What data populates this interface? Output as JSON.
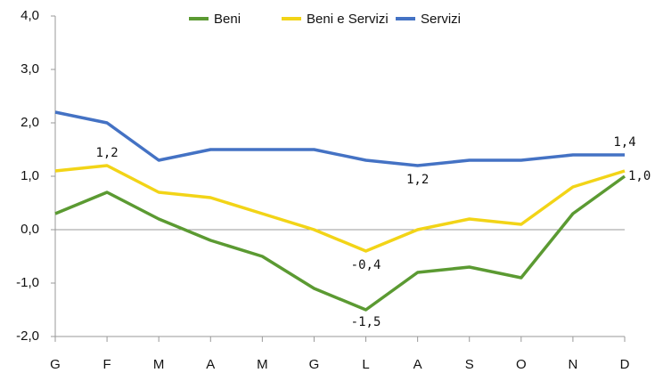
{
  "chart_data": {
    "type": "line",
    "categories": [
      "G",
      "F",
      "M",
      "A",
      "M",
      "G",
      "L",
      "A",
      "S",
      "O",
      "N",
      "D"
    ],
    "series": [
      {
        "name": "Beni",
        "color": "#5b9a32",
        "values": [
          0.3,
          0.7,
          0.2,
          -0.2,
          -0.5,
          -1.1,
          -1.5,
          -0.8,
          -0.7,
          -0.9,
          0.3,
          1.0
        ],
        "value_labels": [
          null,
          null,
          null,
          null,
          null,
          null,
          "-1,5",
          null,
          null,
          null,
          null,
          "1,0"
        ]
      },
      {
        "name": "Beni e Servizi",
        "color": "#f2d417",
        "values": [
          1.1,
          1.2,
          0.7,
          0.6,
          0.3,
          0.0,
          -0.4,
          0.0,
          0.2,
          0.1,
          0.8,
          1.1
        ],
        "value_labels": [
          null,
          "1,2",
          null,
          null,
          null,
          null,
          "-0,4",
          null,
          null,
          null,
          null,
          null
        ]
      },
      {
        "name": "Servizi",
        "color": "#4472c4",
        "values": [
          2.2,
          2.0,
          1.3,
          1.5,
          1.5,
          1.5,
          1.3,
          1.2,
          1.3,
          1.3,
          1.4,
          1.4
        ],
        "value_labels": [
          null,
          null,
          null,
          null,
          null,
          null,
          null,
          "1,2",
          null,
          null,
          null,
          "1,4"
        ]
      }
    ],
    "ylim": [
      -2.0,
      4.0
    ],
    "yticks": [
      {
        "value": -2.0,
        "label": "-2,0"
      },
      {
        "value": -1.0,
        "label": "-1,0"
      },
      {
        "value": 0.0,
        "label": "0,0"
      },
      {
        "value": 1.0,
        "label": "1,0"
      },
      {
        "value": 2.0,
        "label": "2,0"
      },
      {
        "value": 3.0,
        "label": "3,0"
      },
      {
        "value": 4.0,
        "label": "4,0"
      }
    ],
    "legend": "top"
  }
}
